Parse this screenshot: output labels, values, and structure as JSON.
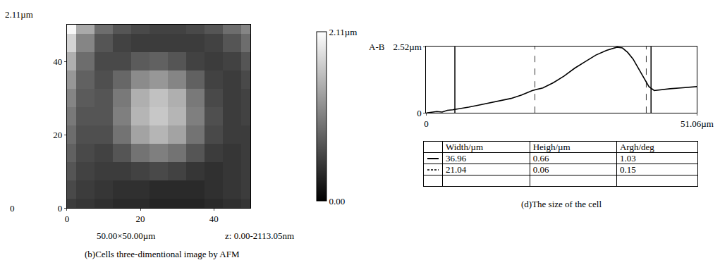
{
  "chart_data": [
    {
      "type": "heatmap",
      "title": "(b)Cells three-dimentional image by AFM",
      "annotations": [
        "2.11µm",
        "0",
        "50.00×50.00µm",
        "z: 0.00-2113.05nm"
      ],
      "x": [
        0,
        5,
        10,
        15,
        20,
        25,
        30,
        35,
        40,
        45,
        50
      ],
      "y": [
        0,
        5,
        10,
        15,
        20,
        25,
        30,
        35,
        40,
        45,
        50
      ],
      "z": [
        [
          0.5,
          0.45,
          0.4,
          0.35,
          0.35,
          0.3,
          0.3,
          0.3,
          0.35,
          0.4,
          0.45
        ],
        [
          0.6,
          0.5,
          0.45,
          0.4,
          0.4,
          0.35,
          0.35,
          0.35,
          0.4,
          0.45,
          0.5
        ],
        [
          0.7,
          0.55,
          0.5,
          0.5,
          0.55,
          0.6,
          0.55,
          0.45,
          0.4,
          0.45,
          0.5
        ],
        [
          0.8,
          0.6,
          0.55,
          0.7,
          0.95,
          1.05,
          0.95,
          0.7,
          0.5,
          0.45,
          0.5
        ],
        [
          0.9,
          0.65,
          0.65,
          0.95,
          1.35,
          1.5,
          1.35,
          0.95,
          0.6,
          0.5,
          0.5
        ],
        [
          1.0,
          0.7,
          0.7,
          1.05,
          1.5,
          1.65,
          1.5,
          1.05,
          0.65,
          0.5,
          0.55
        ],
        [
          1.1,
          0.75,
          0.7,
          1.0,
          1.45,
          1.6,
          1.45,
          1.0,
          0.6,
          0.5,
          0.55
        ],
        [
          1.25,
          0.8,
          0.65,
          0.85,
          1.15,
          1.25,
          1.1,
          0.8,
          0.55,
          0.5,
          0.6
        ],
        [
          1.45,
          0.9,
          0.6,
          0.6,
          0.75,
          0.8,
          0.7,
          0.55,
          0.5,
          0.55,
          0.7
        ],
        [
          1.75,
          1.1,
          0.7,
          0.55,
          0.5,
          0.5,
          0.5,
          0.5,
          0.55,
          0.7,
          0.9
        ],
        [
          2.05,
          1.4,
          0.9,
          0.7,
          0.6,
          0.55,
          0.55,
          0.6,
          0.7,
          0.9,
          1.1
        ]
      ],
      "xlim": [
        0,
        50
      ],
      "ylim": [
        0,
        50
      ],
      "xticks": [
        0,
        20,
        40
      ],
      "yticks": [
        0,
        20,
        40
      ],
      "colorbar_range": [
        0,
        2.11
      ],
      "colorbar_ticks": [
        {
          "value": 0,
          "label": "0.00"
        },
        {
          "value": 2.11,
          "label": "2.11µm"
        }
      ]
    },
    {
      "type": "line",
      "title": "(d)The size of the cell",
      "ylabel": "A-B",
      "x": [
        0,
        1,
        2,
        3,
        4,
        5,
        6,
        8,
        10,
        12,
        14,
        16,
        18,
        20,
        22,
        24,
        26,
        28,
        30,
        32,
        34,
        35,
        36,
        37,
        38,
        39,
        40,
        41,
        42,
        43,
        44,
        46,
        48,
        50,
        51.06
      ],
      "values": [
        0.0,
        0.02,
        0.05,
        0.03,
        0.1,
        0.12,
        0.15,
        0.22,
        0.3,
        0.38,
        0.45,
        0.55,
        0.68,
        0.85,
        0.95,
        1.15,
        1.4,
        1.7,
        1.95,
        2.2,
        2.38,
        2.45,
        2.5,
        2.47,
        2.3,
        2.05,
        1.7,
        1.35,
        1.0,
        0.85,
        0.88,
        0.92,
        0.95,
        0.98,
        1.0
      ],
      "color": "#000000",
      "xlim": [
        0,
        51.06
      ],
      "ylim": [
        0,
        2.52
      ],
      "xticks": [
        0,
        {
          "value": 51.06,
          "label": "51.06µm"
        }
      ],
      "yticks": [
        0,
        {
          "value": 2.52,
          "label": "2.52µm"
        }
      ],
      "cursors": [
        {
          "line_style": "solid",
          "x": [
            5.4,
            42.4
          ]
        },
        {
          "line_style": "dash",
          "x": [
            20.5,
            41.5
          ]
        }
      ],
      "table": {
        "header": [
          "Width/µm",
          "Heigh/µm",
          "Argh/deg"
        ],
        "rows": [
          {
            "line_style": "solid",
            "values": [
              36.96,
              0.66,
              1.03
            ]
          },
          {
            "line_style": "dash",
            "values": [
              21.04,
              0.06,
              0.15
            ]
          }
        ]
      }
    }
  ]
}
